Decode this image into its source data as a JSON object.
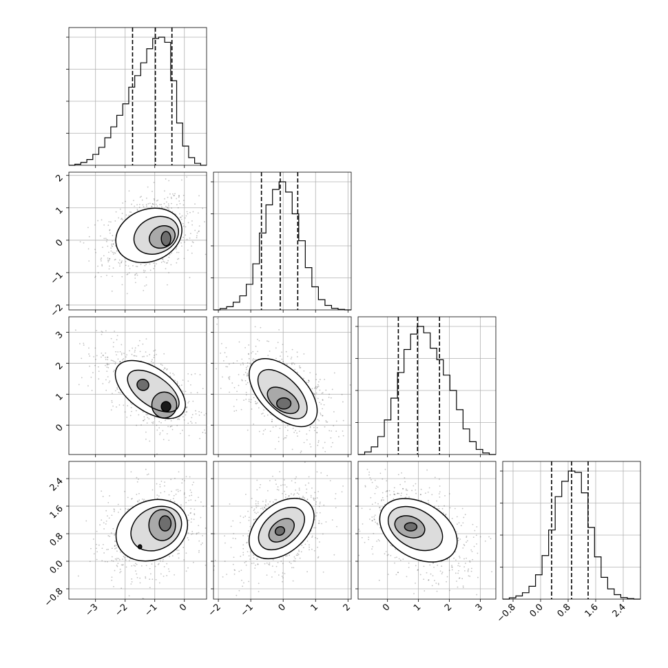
{
  "chart_data": {
    "type": "corner",
    "n_params": 4,
    "grid": true,
    "params": [
      {
        "index": 0,
        "range": [
          -3.9,
          0.75
        ],
        "ticks": [
          -3,
          -2,
          -1,
          0
        ],
        "tick_labels": [
          "−3",
          "−2",
          "−1",
          "0"
        ],
        "quantiles": [
          -1.75,
          -0.98,
          -0.42
        ],
        "hist": [
          0,
          0.008,
          0.022,
          0.045,
          0.085,
          0.14,
          0.215,
          0.3,
          0.39,
          0.48,
          0.61,
          0.7,
          0.8,
          0.91,
          0.99,
          1.0,
          0.96,
          0.66,
          0.33,
          0.15,
          0.06,
          0.015,
          0
        ]
      },
      {
        "index": 1,
        "range": [
          -2.15,
          2.1
        ],
        "ticks": [
          -2,
          -1,
          0,
          1,
          2
        ],
        "tick_labels": [
          "−2",
          "−1",
          "0",
          "1",
          "2"
        ],
        "quantiles": [
          -0.67,
          -0.09,
          0.45
        ],
        "hist": [
          0,
          0.01,
          0.025,
          0.06,
          0.11,
          0.2,
          0.36,
          0.6,
          0.82,
          0.94,
          1.0,
          0.92,
          0.75,
          0.54,
          0.33,
          0.18,
          0.08,
          0.035,
          0.012,
          0.004,
          0
        ]
      },
      {
        "index": 2,
        "range": [
          -0.95,
          3.5
        ],
        "ticks": [
          0,
          1,
          2,
          3
        ],
        "tick_labels": [
          "0",
          "1",
          "2",
          "3"
        ],
        "quantiles": [
          0.35,
          0.97,
          1.68
        ],
        "hist": [
          0,
          0.02,
          0.06,
          0.14,
          0.27,
          0.44,
          0.64,
          0.82,
          0.94,
          1.0,
          0.95,
          0.83,
          0.74,
          0.62,
          0.5,
          0.35,
          0.2,
          0.1,
          0.04,
          0.012,
          0
        ]
      },
      {
        "index": 3,
        "range": [
          -1.1,
          2.9
        ],
        "ticks": [
          -0.8,
          0.0,
          0.8,
          1.6,
          2.4
        ],
        "tick_labels": [
          "−0.8",
          "0.0",
          "0.8",
          "1.6",
          "2.4"
        ],
        "quantiles": [
          0.32,
          0.9,
          1.38
        ],
        "hist": [
          0,
          0.01,
          0.025,
          0.05,
          0.1,
          0.19,
          0.34,
          0.54,
          0.8,
          0.92,
          1.0,
          0.99,
          0.83,
          0.56,
          0.33,
          0.17,
          0.08,
          0.035,
          0.012,
          0.004,
          0
        ]
      }
    ],
    "pairs": [
      {
        "x": 0,
        "y": 1,
        "ellipses": [
          {
            "cx": -1.2,
            "cy": 0.15,
            "rx": 1.15,
            "ry": 0.8,
            "angle": 22
          },
          {
            "cx": -0.95,
            "cy": 0.15,
            "rx": 0.78,
            "ry": 0.55,
            "angle": 25
          },
          {
            "cx": -0.75,
            "cy": 0.1,
            "rx": 0.45,
            "ry": 0.33,
            "angle": 25
          },
          {
            "cx": -0.62,
            "cy": 0.05,
            "rx": 0.16,
            "ry": 0.22,
            "angle": 0
          }
        ]
      },
      {
        "x": 0,
        "y": 2,
        "ellipses": [
          {
            "cx": -1.15,
            "cy": 1.15,
            "rx": 1.35,
            "ry": 0.7,
            "angle": -35
          },
          {
            "cx": -1.05,
            "cy": 1.1,
            "rx": 1.0,
            "ry": 0.48,
            "angle": -35
          },
          {
            "cx": -0.68,
            "cy": 0.65,
            "rx": 0.42,
            "ry": 0.42,
            "angle": 0
          },
          {
            "cx": -1.4,
            "cy": 1.3,
            "rx": 0.2,
            "ry": 0.18,
            "angle": -20
          },
          {
            "cx": -0.62,
            "cy": 0.6,
            "rx": 0.16,
            "ry": 0.16,
            "angle": 0
          }
        ]
      },
      {
        "x": 0,
        "y": 3,
        "ellipses": [
          {
            "cx": -1.1,
            "cy": 0.9,
            "rx": 1.25,
            "ry": 0.85,
            "angle": 25
          },
          {
            "cx": -0.95,
            "cy": 0.95,
            "rx": 0.9,
            "ry": 0.6,
            "angle": 30
          },
          {
            "cx": -0.75,
            "cy": 1.05,
            "rx": 0.45,
            "ry": 0.45,
            "angle": 0
          },
          {
            "cx": -0.65,
            "cy": 1.1,
            "rx": 0.2,
            "ry": 0.22,
            "angle": 0
          },
          {
            "cx": -1.5,
            "cy": 0.42,
            "rx": 0.06,
            "ry": 0.06,
            "angle": 0
          }
        ]
      },
      {
        "x": 1,
        "y": 2,
        "ellipses": [
          {
            "cx": 0.0,
            "cy": 1.05,
            "rx": 1.3,
            "ry": 0.75,
            "angle": -45
          },
          {
            "cx": -0.02,
            "cy": 1.0,
            "rx": 0.95,
            "ry": 0.52,
            "angle": -45
          },
          {
            "cx": 0.0,
            "cy": 0.8,
            "rx": 0.55,
            "ry": 0.33,
            "angle": -35
          },
          {
            "cx": 0.02,
            "cy": 0.7,
            "rx": 0.22,
            "ry": 0.18,
            "angle": 0
          }
        ]
      },
      {
        "x": 1,
        "y": 3,
        "ellipses": [
          {
            "cx": -0.05,
            "cy": 0.95,
            "rx": 1.15,
            "ry": 0.7,
            "angle": 40
          },
          {
            "cx": -0.05,
            "cy": 0.95,
            "rx": 0.82,
            "ry": 0.48,
            "angle": 40
          },
          {
            "cx": -0.05,
            "cy": 0.9,
            "rx": 0.45,
            "ry": 0.27,
            "angle": 40
          },
          {
            "cx": -0.1,
            "cy": 0.88,
            "rx": 0.15,
            "ry": 0.12,
            "angle": 30
          }
        ]
      },
      {
        "x": 2,
        "y": 3,
        "ellipses": [
          {
            "cx": 1.0,
            "cy": 0.9,
            "rx": 1.35,
            "ry": 0.8,
            "angle": -30
          },
          {
            "cx": 0.9,
            "cy": 0.95,
            "rx": 0.95,
            "ry": 0.55,
            "angle": -30
          },
          {
            "cx": 0.72,
            "cy": 1.0,
            "rx": 0.5,
            "ry": 0.3,
            "angle": -20
          },
          {
            "cx": 0.75,
            "cy": 1.0,
            "rx": 0.2,
            "ry": 0.12,
            "angle": 0
          }
        ]
      }
    ]
  }
}
